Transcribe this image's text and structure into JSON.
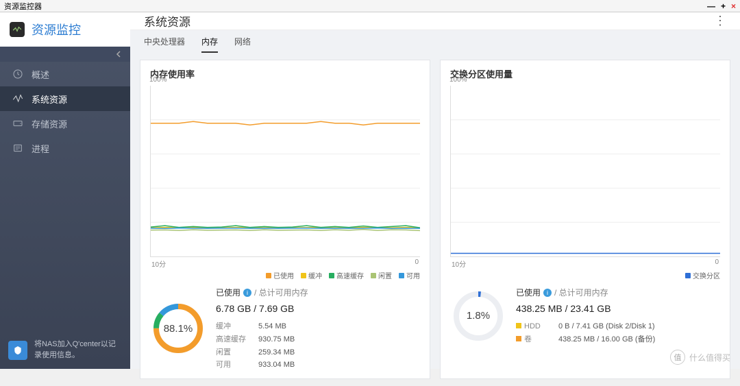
{
  "window": {
    "title": "资源监控器"
  },
  "app": {
    "title": "资源监控"
  },
  "sidebar": {
    "items": [
      {
        "label": "概述"
      },
      {
        "label": "系统资源"
      },
      {
        "label": "存储资源"
      },
      {
        "label": "进程"
      }
    ],
    "active_index": 1,
    "footer": "将NAS加入Q'center以记录使用信息。"
  },
  "page": {
    "title": "系统资源"
  },
  "tabs": {
    "items": [
      "中央处理器",
      "内存",
      "网络"
    ],
    "active_index": 1
  },
  "memory_panel": {
    "title": "内存使用率",
    "chart": {
      "type": "line",
      "ymax_label": "100%",
      "xlim": [
        "10分",
        "0"
      ],
      "ylim": [
        0,
        100
      ],
      "grid_color": "#eeeeee",
      "series": [
        {
          "key": "used",
          "label": "已使用",
          "color": "#f39c2b",
          "values": [
            78,
            78,
            78,
            79,
            78,
            78,
            78,
            77,
            78,
            78,
            78,
            78,
            79,
            78,
            78,
            77,
            78,
            78,
            78,
            78
          ]
        },
        {
          "key": "buffer",
          "label": "缓冲",
          "color": "#f0c419",
          "values": [
            16.8,
            17,
            16.9,
            17,
            16.8,
            16.8,
            17,
            16.9,
            16.8,
            17,
            16.8,
            16.9,
            17,
            16.8,
            16.8,
            17,
            16.9,
            16.8,
            17,
            16.8
          ]
        },
        {
          "key": "cache",
          "label": "高速缓存",
          "color": "#27ae60",
          "values": [
            17.2,
            18,
            17,
            17.5,
            17,
            17.2,
            18,
            17,
            17.5,
            17,
            17.2,
            18,
            17,
            17.5,
            17,
            17.8,
            17,
            17.5,
            18,
            16.8
          ]
        },
        {
          "key": "idle",
          "label": "闲置",
          "color": "#aac474",
          "values": [
            15.4,
            15.5,
            15.2,
            15.6,
            15.3,
            15.4,
            15.5,
            15.2,
            15.6,
            15.3,
            15.4,
            15.5,
            15.2,
            15.6,
            15.3,
            15.8,
            15.2,
            15.6,
            15.5,
            15.1
          ]
        },
        {
          "key": "avail",
          "label": "可用",
          "color": "#3498db",
          "values": [
            16.5,
            16.4,
            16.6,
            16.5,
            16.4,
            16.5,
            16.6,
            16.4,
            16.5,
            16.4,
            16.5,
            16.6,
            16.4,
            16.5,
            16.4,
            16.5,
            16.6,
            16.4,
            16.5,
            16.4
          ]
        }
      ]
    },
    "donut": {
      "percent_label": "88.1%",
      "segments": [
        {
          "color": "#f39c2b",
          "fraction": 0.75
        },
        {
          "color": "#27ae60",
          "fraction": 0.11
        },
        {
          "color": "#3498db",
          "fraction": 0.14
        }
      ],
      "track_color": "#eceef2"
    },
    "stats": {
      "head_label": "已使用",
      "head_suffix": "/ 总计可用内存",
      "main": "6.78 GB / 7.69 GB",
      "rows": [
        {
          "k": "缓冲",
          "v": "5.54 MB"
        },
        {
          "k": "高速缓存",
          "v": "930.75 MB"
        },
        {
          "k": "闲置",
          "v": "259.34 MB"
        },
        {
          "k": "可用",
          "v": "933.04 MB"
        }
      ]
    }
  },
  "swap_panel": {
    "title": "交换分区使用量",
    "chart": {
      "type": "line",
      "ymax_label": "100%",
      "xlim": [
        "10分",
        "0"
      ],
      "ylim": [
        0,
        100
      ],
      "grid_color": "#eeeeee",
      "series": [
        {
          "key": "swap",
          "label": "交换分区",
          "color": "#2e6fd6",
          "values": [
            1.8,
            1.8,
            1.8,
            1.8,
            1.8,
            1.8,
            1.8,
            1.8,
            1.8,
            1.8,
            1.8,
            1.8,
            1.8,
            1.8,
            1.8,
            1.8,
            1.8,
            1.8,
            1.8,
            1.8
          ]
        }
      ]
    },
    "donut": {
      "percent_label": "1.8%",
      "segments": [
        {
          "color": "#2e6fd6",
          "fraction": 0.018
        }
      ],
      "track_color": "#eceef2"
    },
    "stats": {
      "head_label": "已使用",
      "head_suffix": "/ 总计可用内存",
      "main": "438.25 MB / 23.41 GB",
      "rows": [
        {
          "bullet": "#f0c419",
          "k": "HDD",
          "v": "0 B / 7.41 GB (Disk 2/Disk 1)"
        },
        {
          "bullet": "#f39c2b",
          "k": "卷",
          "v": "438.25 MB / 16.00 GB (备份)"
        }
      ]
    }
  },
  "watermark": {
    "badge": "值",
    "text": "什么值得买"
  }
}
